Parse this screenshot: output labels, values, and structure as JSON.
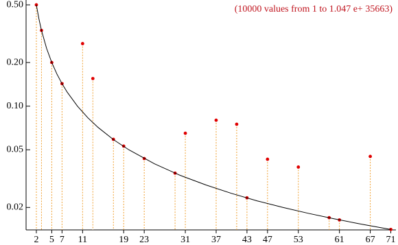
{
  "chart_data": {
    "type": "scatter",
    "annotation": "(10000 values from  1  to   1.047 e+ 35663)",
    "annotation_color": "#c0141e",
    "log_y": true,
    "xlim": [
      0,
      72
    ],
    "ylim": [
      0.014,
      0.54
    ],
    "xticks": [
      2,
      5,
      7,
      11,
      19,
      23,
      31,
      37,
      43,
      47,
      53,
      61,
      67,
      71
    ],
    "yticks": [
      {
        "value": 0.5,
        "label": "0.50"
      },
      {
        "value": 0.2,
        "label": "0.20"
      },
      {
        "value": 0.1,
        "label": "0.10"
      },
      0.05,
      0.02
    ],
    "series": [
      {
        "color": "#e00000",
        "drop_color": "#f0a030",
        "x": [
          2,
          3,
          5,
          7,
          11,
          13,
          17,
          19,
          23,
          29,
          31,
          37,
          41,
          43,
          47,
          53,
          59,
          61,
          67,
          71
        ],
        "values": [
          0.5,
          0.333,
          0.2,
          0.143,
          0.27,
          0.155,
          0.059,
          0.053,
          0.0435,
          0.0345,
          0.065,
          0.08,
          0.075,
          0.0233,
          0.043,
          0.038,
          0.017,
          0.0164,
          0.045,
          0.0141
        ]
      },
      {
        "type": "line",
        "color": "#000000",
        "x": [
          2,
          2.5,
          3,
          4,
          5,
          6,
          7,
          8,
          10,
          12,
          14,
          17,
          20,
          25,
          30,
          35,
          40,
          45,
          50,
          55,
          60,
          65,
          71
        ],
        "values": [
          0.5,
          0.4,
          0.333,
          0.25,
          0.2,
          0.1667,
          0.1429,
          0.125,
          0.1,
          0.0833,
          0.0714,
          0.0588,
          0.05,
          0.04,
          0.0333,
          0.0286,
          0.025,
          0.0222,
          0.02,
          0.0182,
          0.0167,
          0.0154,
          0.0141
        ]
      }
    ]
  }
}
